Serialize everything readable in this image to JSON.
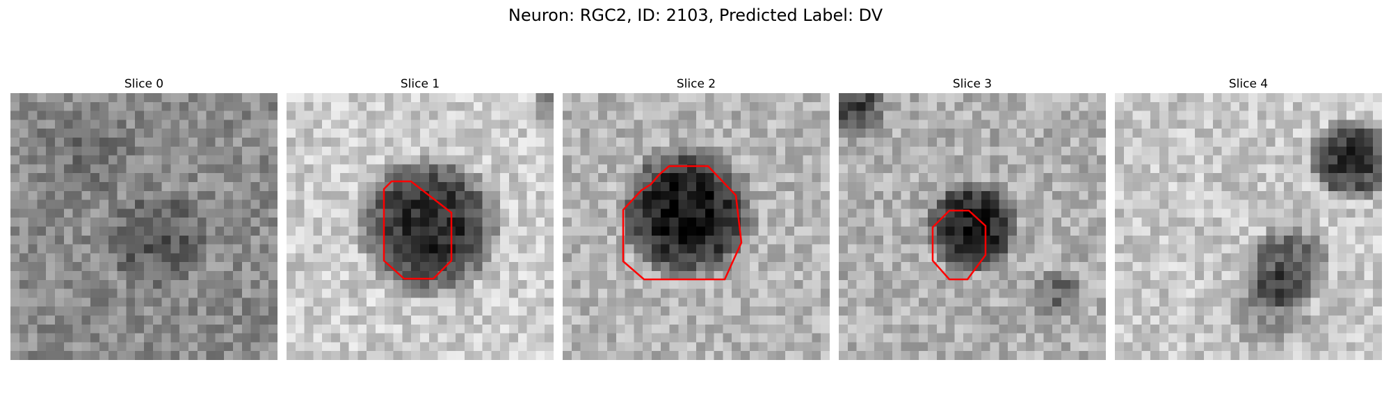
{
  "figure": {
    "title": "Neuron: RGC2, ID: 2103, Predicted Label: DV"
  },
  "panels": [
    {
      "title": "Slice 0",
      "appearance": "diffuse grey noise with a faint dark spot near the lower centre",
      "has_roi": false
    },
    {
      "title": "Slice 1",
      "appearance": "light background with a sharp dark round soma in the centre",
      "has_roi": true
    },
    {
      "title": "Slice 2",
      "appearance": "grey background with a large dark round soma in the centre",
      "has_roi": true
    },
    {
      "title": "Slice 3",
      "appearance": "grey background with a small dark soma, dark corner at top-left",
      "has_roi": true
    },
    {
      "title": "Slice 4",
      "appearance": "light background with dark streak at upper right and dark blob in lower middle",
      "has_roi": false
    }
  ],
  "colors": {
    "roi_outline": "#ff0000",
    "background": "#ffffff"
  }
}
